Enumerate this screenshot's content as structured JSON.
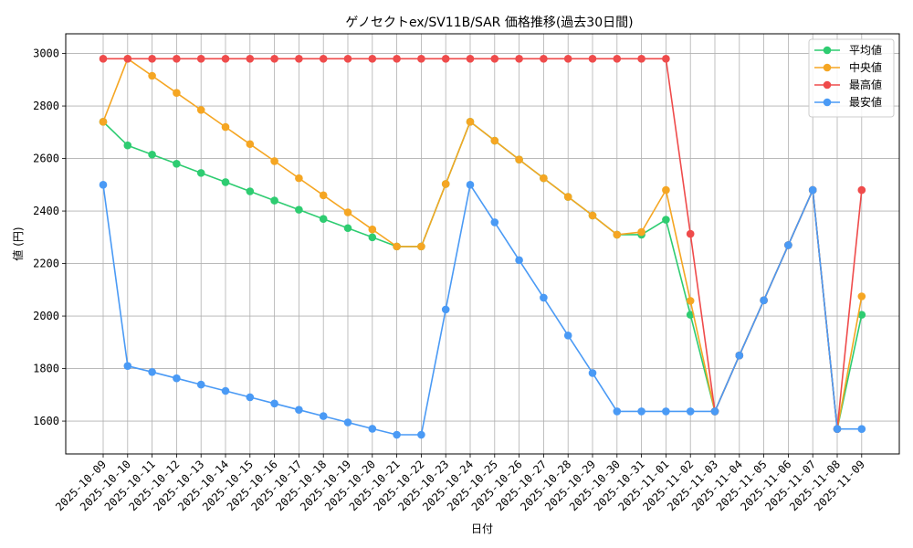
{
  "chart_data": {
    "type": "line",
    "title": "ゲノセクトex/SV11B/SAR 価格推移(過去30日間)",
    "xlabel": "日付",
    "ylabel": "値 (円)",
    "ylim": [
      1475,
      3075
    ],
    "yticks": [
      1600,
      1800,
      2000,
      2200,
      2400,
      2600,
      2800,
      3000
    ],
    "grid": true,
    "legend_position": "top-right",
    "x": [
      "2025-10-09",
      "2025-10-10",
      "2025-10-11",
      "2025-10-12",
      "2025-10-13",
      "2025-10-14",
      "2025-10-15",
      "2025-10-16",
      "2025-10-17",
      "2025-10-18",
      "2025-10-19",
      "2025-10-20",
      "2025-10-21",
      "2025-10-22",
      "2025-10-23",
      "2025-10-24",
      "2025-10-25",
      "2025-10-26",
      "2025-10-27",
      "2025-10-28",
      "2025-10-29",
      "2025-10-30",
      "2025-10-31",
      "2025-11-01",
      "2025-11-02",
      "2025-11-03",
      "2025-11-04",
      "2025-11-05",
      "2025-11-06",
      "2025-11-07",
      "2025-11-08",
      "2025-11-09"
    ],
    "series": [
      {
        "name": "平均値",
        "color": "#2ecc71",
        "values": [
          2740,
          2650,
          2615,
          2580,
          2545,
          2510,
          2475,
          2440,
          2405,
          2370,
          2335,
          2300,
          2265,
          2265,
          2503,
          2740,
          2668,
          2596,
          2525,
          2454,
          2383,
          2310,
          2310,
          2367,
          2005,
          1637,
          1850,
          2060,
          2270,
          2480,
          1570,
          2005
        ]
      },
      {
        "name": "中央値",
        "color": "#f5a623",
        "values": [
          2740,
          2980,
          2915,
          2850,
          2785,
          2720,
          2655,
          2590,
          2525,
          2460,
          2395,
          2330,
          2265,
          2265,
          2503,
          2740,
          2668,
          2596,
          2525,
          2454,
          2383,
          2310,
          2320,
          2480,
          2058,
          1637,
          1850,
          2060,
          2270,
          2480,
          1570,
          2075
        ]
      },
      {
        "name": "最高値",
        "color": "#ef4b4b",
        "values": [
          2980,
          2980,
          2980,
          2980,
          2980,
          2980,
          2980,
          2980,
          2980,
          2980,
          2980,
          2980,
          2980,
          2980,
          2980,
          2980,
          2980,
          2980,
          2980,
          2980,
          2980,
          2980,
          2980,
          2980,
          2313,
          1637,
          1850,
          2060,
          2270,
          2480,
          1570,
          2480
        ]
      },
      {
        "name": "最安値",
        "color": "#4a9af5",
        "values": [
          2500,
          1810,
          1787,
          1763,
          1739,
          1715,
          1691,
          1667,
          1643,
          1619,
          1595,
          1571,
          1548,
          1548,
          2025,
          2500,
          2357,
          2213,
          2070,
          1926,
          1783,
          1637,
          1637,
          1637,
          1637,
          1637,
          1850,
          2060,
          2270,
          2480,
          1570,
          1570
        ]
      }
    ]
  }
}
